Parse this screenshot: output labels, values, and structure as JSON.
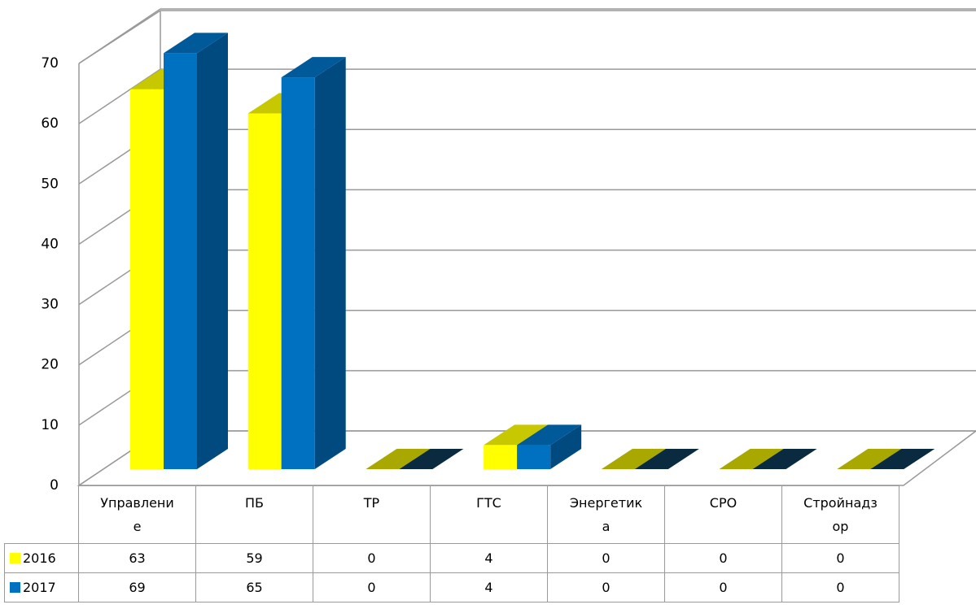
{
  "chart_data": {
    "type": "bar3d",
    "categories": [
      "Управление",
      "ПБ",
      "ТР",
      "ГТС",
      "Энергетика",
      "СРО",
      "Стройнадзор"
    ],
    "series": [
      {
        "name": "2016",
        "color": "#ffff00",
        "values": [
          63,
          59,
          0,
          4,
          0,
          0,
          0
        ]
      },
      {
        "name": "2017",
        "color": "#0070c0",
        "values": [
          69,
          65,
          0,
          4,
          0,
          0,
          0
        ]
      }
    ],
    "ylim": [
      0,
      70
    ],
    "yticks": [
      0,
      10,
      20,
      30,
      40,
      50,
      60,
      70
    ],
    "grid": true,
    "data_table": true
  }
}
